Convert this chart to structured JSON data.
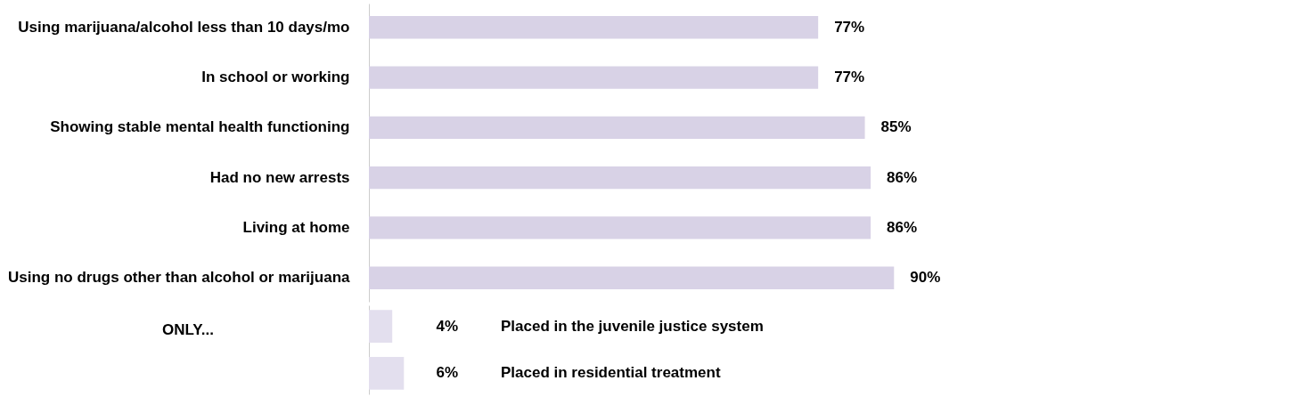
{
  "chart_data": [
    {
      "type": "bar",
      "orientation": "horizontal",
      "categories": [
        "Using marijuana/alcohol less than 10 days/mo",
        "In school or working",
        "Showing stable mental health functioning",
        "Had no new arrests",
        "Living at home",
        "Using no drugs other than alcohol or marijuana"
      ],
      "series": [
        {
          "color": "#d8d2e6",
          "values": [
            77,
            77,
            85,
            86,
            86,
            90
          ],
          "value_labels": [
            "77%",
            "77%",
            "85%",
            "86%",
            "86%",
            "90%"
          ]
        }
      ]
    },
    {
      "type": "bar",
      "orientation": "horizontal",
      "categories": [
        "Placed in the juvenile justice system",
        "Placed in residential treatment"
      ],
      "annotations": [
        "ONLY..."
      ],
      "series": [
        {
          "color": "#e3dfee",
          "values": [
            4,
            6
          ],
          "value_labels": [
            "4%",
            "6%"
          ]
        }
      ]
    }
  ]
}
